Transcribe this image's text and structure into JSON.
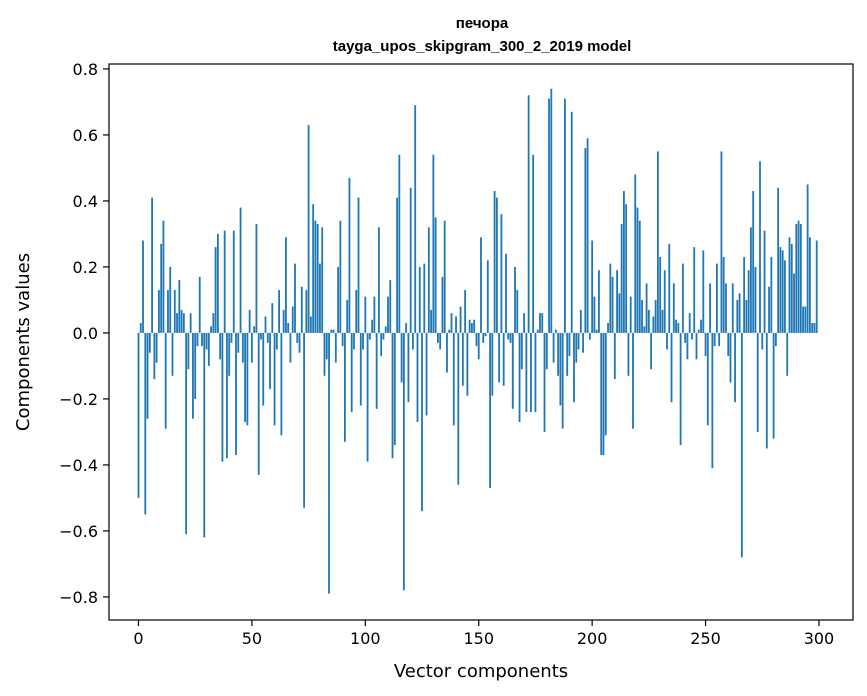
{
  "chart_data": {
    "type": "bar",
    "title": "печора",
    "subtitle": "tayga_upos_skipgram_300_2_2019 model",
    "xlabel": "Vector components",
    "ylabel": "Components values",
    "xlim": [
      -13,
      315
    ],
    "ylim": [
      -0.87,
      0.815
    ],
    "xticks": [
      0,
      50,
      100,
      150,
      200,
      250,
      300
    ],
    "xtick_labels": [
      "0",
      "50",
      "100",
      "150",
      "200",
      "250",
      "300"
    ],
    "yticks": [
      -0.8,
      -0.6,
      -0.4,
      -0.2,
      0.0,
      0.2,
      0.4,
      0.6,
      0.8
    ],
    "ytick_labels": [
      "−0.8",
      "−0.6",
      "−0.4",
      "−0.2",
      "0.0",
      "0.2",
      "0.4",
      "0.6",
      "0.8"
    ],
    "bar_color": "#1f77b4",
    "grid": false,
    "legend": "none",
    "values": [
      -0.5,
      0.03,
      0.28,
      -0.55,
      -0.26,
      -0.06,
      0.41,
      -0.14,
      -0.09,
      0.13,
      0.27,
      0.34,
      -0.29,
      0.13,
      0.2,
      -0.13,
      0.13,
      0.06,
      0.16,
      0.07,
      0.06,
      -0.61,
      -0.11,
      0.06,
      -0.26,
      -0.2,
      -0.04,
      0.17,
      -0.04,
      -0.62,
      -0.05,
      -0.1,
      0.02,
      0.06,
      0.26,
      0.3,
      -0.08,
      -0.39,
      0.31,
      -0.38,
      -0.13,
      -0.03,
      0.31,
      -0.37,
      -0.06,
      0.38,
      -0.09,
      -0.27,
      -0.28,
      0.07,
      -0.09,
      0.02,
      0.33,
      -0.43,
      -0.02,
      -0.22,
      0.05,
      -0.03,
      -0.17,
      0.09,
      -0.28,
      -0.05,
      0.13,
      -0.31,
      0.07,
      0.29,
      0.03,
      -0.09,
      0.08,
      0.21,
      -0.03,
      -0.06,
      0.14,
      -0.53,
      0.13,
      0.63,
      0.05,
      0.39,
      0.34,
      0.33,
      0.21,
      0.32,
      -0.13,
      -0.08,
      -0.79,
      0.01,
      0.01,
      -0.09,
      0.2,
      0.34,
      -0.04,
      -0.33,
      0.1,
      0.47,
      -0.24,
      -0.05,
      0.13,
      0.41,
      -0.22,
      -0.05,
      0.11,
      -0.39,
      -0.02,
      0.04,
      0.11,
      -0.23,
      0.32,
      -0.07,
      -0.02,
      0.02,
      0.11,
      0.16,
      -0.38,
      -0.34,
      0.41,
      0.54,
      -0.15,
      -0.78,
      0.03,
      -0.21,
      0.44,
      -0.05,
      0.69,
      -0.27,
      0.2,
      -0.54,
      0.21,
      -0.25,
      0.32,
      0.07,
      0.54,
      0.35,
      -0.03,
      -0.05,
      0.17,
      0.34,
      -0.12,
      0.01,
      0.06,
      -0.28,
      0.05,
      -0.46,
      0.08,
      -0.16,
      0.13,
      -0.19,
      0.04,
      0.03,
      0.04,
      -0.04,
      -0.08,
      0.29,
      -0.03,
      -0.01,
      0.22,
      -0.47,
      -0.19,
      0.43,
      0.41,
      -0.15,
      0.36,
      -0.16,
      0.24,
      -0.02,
      -0.03,
      -0.23,
      0.2,
      0.13,
      -0.27,
      -0.11,
      0.06,
      -0.24,
      0.72,
      -0.24,
      0.54,
      -0.24,
      0.01,
      0.06,
      0.06,
      -0.3,
      -0.11,
      0.71,
      0.74,
      -0.09,
      0.01,
      -0.13,
      -0.22,
      -0.29,
      0.71,
      -0.13,
      -0.07,
      0.67,
      -0.21,
      -0.09,
      -0.05,
      0.07,
      -0.06,
      0.56,
      0.59,
      -0.02,
      0.28,
      0.11,
      0.01,
      0.19,
      -0.37,
      -0.37,
      -0.31,
      0.03,
      0.21,
      0.17,
      -0.14,
      0.19,
      0.12,
      0.33,
      0.43,
      0.39,
      -0.13,
      0.11,
      -0.29,
      0.48,
      0.38,
      0.34,
      0.1,
      0.02,
      0.15,
      0.07,
      -0.11,
      0.05,
      0.1,
      0.55,
      0.23,
      0.07,
      0.19,
      -0.05,
      0.27,
      -0.21,
      0.15,
      0.04,
      0.03,
      -0.34,
      0.21,
      -0.03,
      -0.08,
      0.06,
      -0.02,
      0.26,
      -0.08,
      0.01,
      0.04,
      0.25,
      -0.07,
      -0.28,
      0.15,
      -0.41,
      -0.04,
      0.21,
      -0.04,
      0.55,
      0.23,
      0.15,
      -0.07,
      -0.15,
      0.15,
      -0.21,
      0.1,
      0.12,
      -0.68,
      0.23,
      0.1,
      0.19,
      0.32,
      0.43,
      0.2,
      -0.3,
      0.52,
      -0.05,
      0.31,
      -0.35,
      0.14,
      0.23,
      -0.32,
      -0.04,
      0.44,
      0.26,
      0.25,
      0.22,
      -0.13,
      0.29,
      0.27,
      0.18,
      0.33,
      0.34,
      0.33,
      0.08,
      0.08,
      0.45,
      0.29,
      0.03,
      0.03,
      0.28
    ]
  }
}
